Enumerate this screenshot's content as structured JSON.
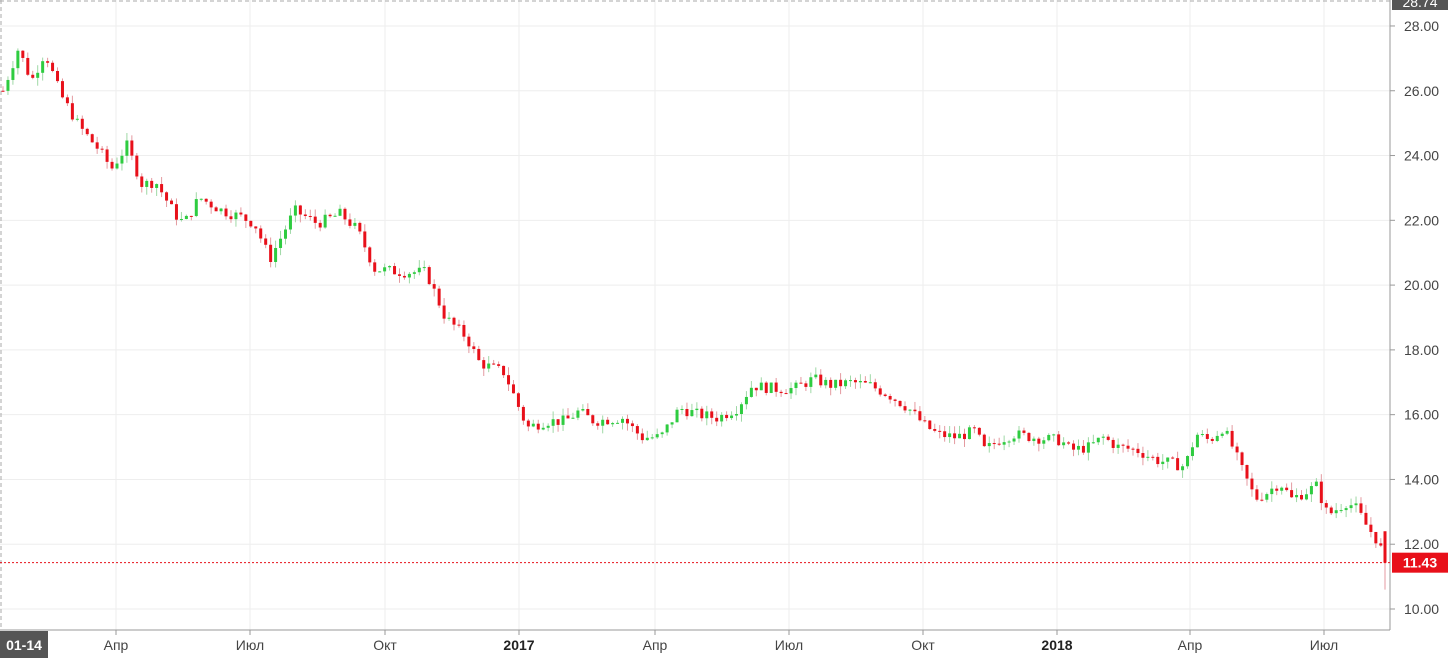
{
  "chart_data": {
    "type": "candlestick",
    "x_axis": {
      "start_label": "01-14",
      "ticks": [
        {
          "label": "Апр",
          "bold": false
        },
        {
          "label": "Июл",
          "bold": false
        },
        {
          "label": "Окт",
          "bold": false
        },
        {
          "label": "2017",
          "bold": true
        },
        {
          "label": "Апр",
          "bold": false
        },
        {
          "label": "Июл",
          "bold": false
        },
        {
          "label": "Окт",
          "bold": false
        },
        {
          "label": "2018",
          "bold": true
        },
        {
          "label": "Апр",
          "bold": false
        },
        {
          "label": "Июл",
          "bold": false
        }
      ]
    },
    "y_axis": {
      "position": "right",
      "ticks": [
        "10.00",
        "12.00",
        "14.00",
        "16.00",
        "18.00",
        "20.00",
        "22.00",
        "24.00",
        "26.00",
        "28.00"
      ],
      "range": [
        9.5,
        28.74
      ]
    },
    "max_label": "28.74",
    "last_price": {
      "value": 11.43,
      "label": "11.43"
    },
    "grid": true,
    "colors": {
      "up": "#2ecc40",
      "down": "#e8101a",
      "last_price": "#e8101a",
      "grid": "#eeeeee",
      "badge": "#555555"
    },
    "price_path": [
      [
        0,
        26.0
      ],
      [
        0.8,
        27.3
      ],
      [
        1.5,
        26.3
      ],
      [
        2.2,
        27.2
      ],
      [
        3.0,
        25.9
      ],
      [
        4.0,
        24.9
      ],
      [
        5.0,
        24.2
      ],
      [
        5.7,
        23.6
      ],
      [
        6.5,
        24.3
      ],
      [
        7.3,
        23.1
      ],
      [
        8.0,
        23.2
      ],
      [
        9.0,
        22.2
      ],
      [
        9.5,
        21.9
      ],
      [
        10.3,
        22.7
      ],
      [
        11.5,
        22.3
      ],
      [
        12.5,
        22.1
      ],
      [
        13.2,
        21.9
      ],
      [
        14.0,
        20.8
      ],
      [
        15.3,
        22.3
      ],
      [
        16.5,
        21.9
      ],
      [
        17.7,
        22.2
      ],
      [
        18.6,
        21.7
      ],
      [
        19.5,
        20.5
      ],
      [
        21.0,
        20.4
      ],
      [
        22.2,
        20.4
      ],
      [
        23.2,
        19.0
      ],
      [
        24.3,
        18.4
      ],
      [
        25.0,
        17.6
      ],
      [
        26.3,
        17.3
      ],
      [
        27.5,
        15.6
      ],
      [
        28.5,
        15.8
      ],
      [
        29.5,
        15.8
      ],
      [
        30.2,
        16.1
      ],
      [
        31.0,
        15.8
      ],
      [
        32.5,
        15.9
      ],
      [
        33.5,
        15.3
      ],
      [
        34.5,
        15.3
      ],
      [
        35.5,
        16.2
      ],
      [
        36.5,
        16.0
      ],
      [
        37.5,
        15.9
      ],
      [
        38.5,
        16.2
      ],
      [
        39.3,
        16.9
      ],
      [
        40.5,
        16.8
      ],
      [
        41.5,
        16.8
      ],
      [
        42.5,
        17.1
      ],
      [
        43.5,
        16.9
      ],
      [
        44.5,
        17.0
      ],
      [
        45.5,
        16.9
      ],
      [
        46.5,
        16.6
      ],
      [
        47.5,
        16.2
      ],
      [
        48.3,
        15.7
      ],
      [
        49.0,
        15.4
      ],
      [
        50.0,
        15.3
      ],
      [
        51.0,
        15.5
      ],
      [
        51.5,
        14.9
      ],
      [
        52.2,
        15.2
      ],
      [
        53.0,
        15.4
      ],
      [
        54.0,
        15.3
      ],
      [
        55.5,
        15.2
      ],
      [
        56.0,
        14.9
      ],
      [
        57.0,
        15.0
      ],
      [
        57.7,
        15.3
      ],
      [
        58.5,
        15.0
      ],
      [
        59.5,
        14.9
      ],
      [
        60.5,
        14.6
      ],
      [
        61.3,
        14.5
      ],
      [
        62.0,
        14.4
      ],
      [
        62.6,
        15.4
      ],
      [
        63.3,
        15.2
      ],
      [
        64.0,
        15.6
      ],
      [
        64.5,
        15.0
      ],
      [
        65.0,
        14.3
      ],
      [
        65.7,
        13.4
      ],
      [
        66.3,
        13.6
      ],
      [
        67.0,
        13.9
      ],
      [
        67.6,
        13.4
      ],
      [
        68.3,
        13.6
      ],
      [
        68.9,
        13.8
      ],
      [
        69.5,
        12.9
      ],
      [
        70.0,
        13.1
      ],
      [
        70.5,
        13.3
      ],
      [
        71.0,
        13.1
      ],
      [
        71.5,
        12.6
      ],
      [
        72.0,
        12.2
      ],
      [
        72.5,
        11.6
      ]
    ]
  }
}
